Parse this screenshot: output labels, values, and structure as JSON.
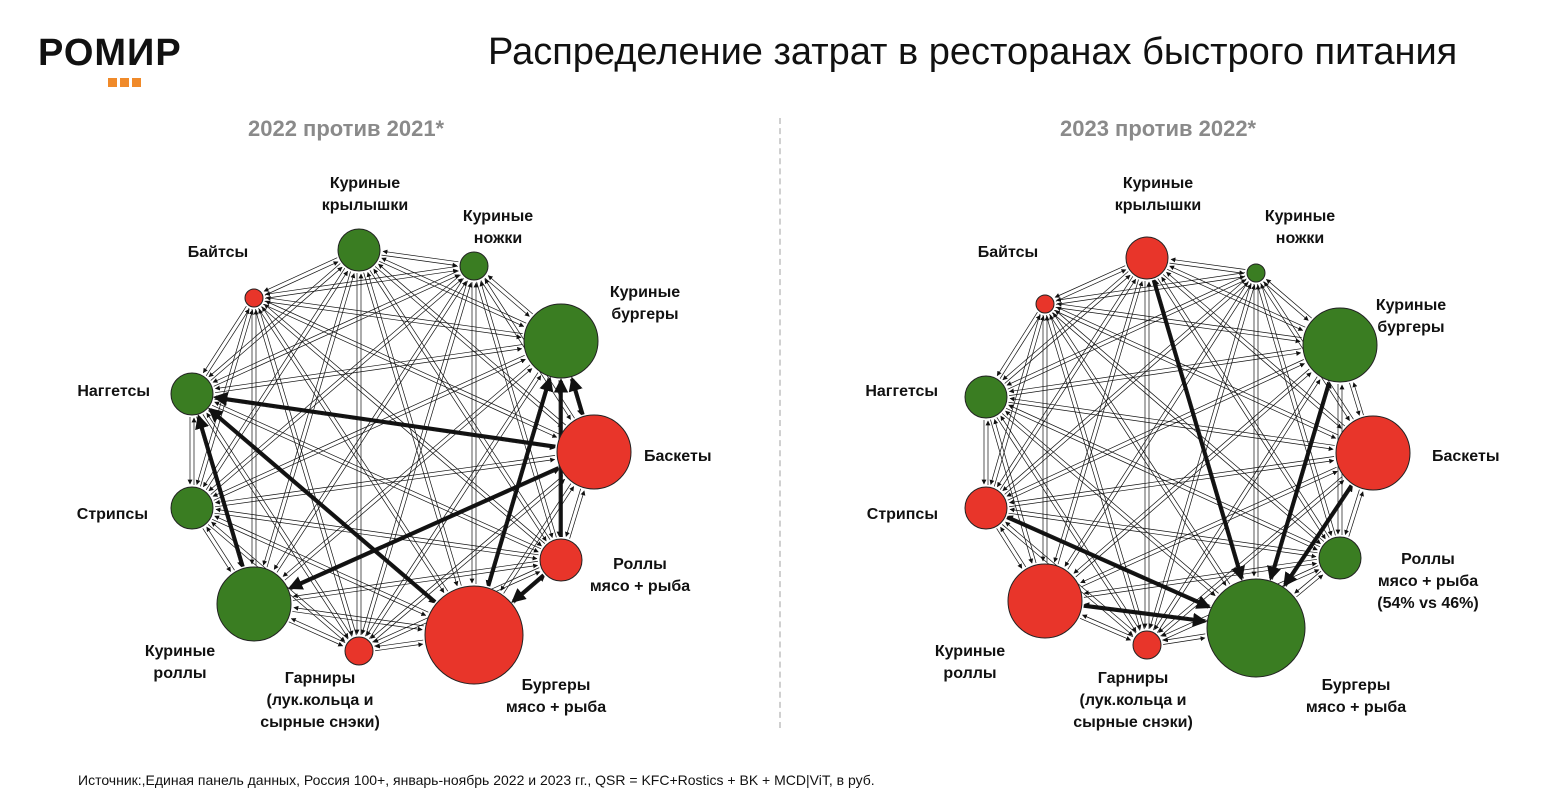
{
  "logo": {
    "text": "РОМИР"
  },
  "title": "Распределение затрат в ресторанах быстрого питания",
  "footnote": "Источник:,Единая панель данных, Россия 100+, январь-ноябрь 2022 и 2023 гг., QSR = KFC+Rostics + BK + MCD|ViT, в руб.",
  "colors": {
    "green": "#3a7d22",
    "red": "#e8352a",
    "accent": "#f08a2a"
  },
  "panels": [
    {
      "id": "left",
      "title": "2022 против 2021*",
      "nodes": [
        {
          "id": "wings",
          "label": [
            "Куриные",
            "крылышки"
          ],
          "color": "green",
          "size": "medium"
        },
        {
          "id": "legs",
          "label": [
            "Куриные",
            "ножки"
          ],
          "color": "green",
          "size": "small"
        },
        {
          "id": "burgers",
          "label": [
            "Куриные",
            "бургеры"
          ],
          "color": "green",
          "size": "large"
        },
        {
          "id": "baskets",
          "label": [
            "Баскеты"
          ],
          "color": "red",
          "size": "large"
        },
        {
          "id": "rolls_mf",
          "label": [
            "Роллы",
            "мясо + рыба"
          ],
          "color": "red",
          "size": "medium"
        },
        {
          "id": "burgers_mf",
          "label": [
            "Бургеры",
            "мясо + рыба"
          ],
          "color": "red",
          "size": "xlarge"
        },
        {
          "id": "sides",
          "label": [
            "Гарниры",
            "(лук.кольца и",
            "сырные снэки)"
          ],
          "color": "red",
          "size": "small"
        },
        {
          "id": "chicken_rolls",
          "label": [
            "Куриные",
            "роллы"
          ],
          "color": "green",
          "size": "large"
        },
        {
          "id": "strips",
          "label": [
            "Стрипсы"
          ],
          "color": "green",
          "size": "medium"
        },
        {
          "id": "nuggets",
          "label": [
            "Наггетсы"
          ],
          "color": "green",
          "size": "medium"
        },
        {
          "id": "bites",
          "label": [
            "Байтсы"
          ],
          "color": "red",
          "size": "tiny"
        }
      ],
      "strong_flows": [
        [
          "burgers_mf",
          "burgers"
        ],
        [
          "rolls_mf",
          "burgers_mf"
        ],
        [
          "burgers_mf",
          "nuggets"
        ],
        [
          "baskets",
          "nuggets"
        ],
        [
          "baskets",
          "chicken_rolls"
        ],
        [
          "chicken_rolls",
          "nuggets"
        ],
        [
          "rolls_mf",
          "burgers"
        ],
        [
          "baskets",
          "burgers"
        ]
      ]
    },
    {
      "id": "right",
      "title": "2023 против 2022*",
      "nodes": [
        {
          "id": "wings",
          "label": [
            "Куриные",
            "крылышки"
          ],
          "color": "red",
          "size": "medium"
        },
        {
          "id": "legs",
          "label": [
            "Куриные",
            "ножки"
          ],
          "color": "green",
          "size": "tiny"
        },
        {
          "id": "burgers",
          "label": [
            "Куриные",
            "бургеры"
          ],
          "color": "green",
          "size": "large"
        },
        {
          "id": "baskets",
          "label": [
            "Баскеты"
          ],
          "color": "red",
          "size": "large"
        },
        {
          "id": "rolls_mf",
          "label": [
            "Роллы",
            "мясо + рыба",
            "(54% vs 46%)"
          ],
          "color": "green",
          "size": "medium"
        },
        {
          "id": "burgers_mf",
          "label": [
            "Бургеры",
            "мясо + рыба"
          ],
          "color": "green",
          "size": "xlarge"
        },
        {
          "id": "sides",
          "label": [
            "Гарниры",
            "(лук.кольца и",
            "сырные снэки)"
          ],
          "color": "red",
          "size": "small"
        },
        {
          "id": "chicken_rolls",
          "label": [
            "Куриные",
            "роллы"
          ],
          "color": "red",
          "size": "large"
        },
        {
          "id": "strips",
          "label": [
            "Стрипсы"
          ],
          "color": "red",
          "size": "medium"
        },
        {
          "id": "nuggets",
          "label": [
            "Наггетсы"
          ],
          "color": "green",
          "size": "medium"
        },
        {
          "id": "bites",
          "label": [
            "Байтсы"
          ],
          "color": "red",
          "size": "tiny"
        }
      ],
      "strong_flows": [
        [
          "chicken_rolls",
          "burgers_mf"
        ],
        [
          "baskets",
          "burgers_mf"
        ],
        [
          "strips",
          "burgers_mf"
        ],
        [
          "wings",
          "burgers_mf"
        ],
        [
          "burgers",
          "burgers_mf"
        ]
      ]
    }
  ]
}
